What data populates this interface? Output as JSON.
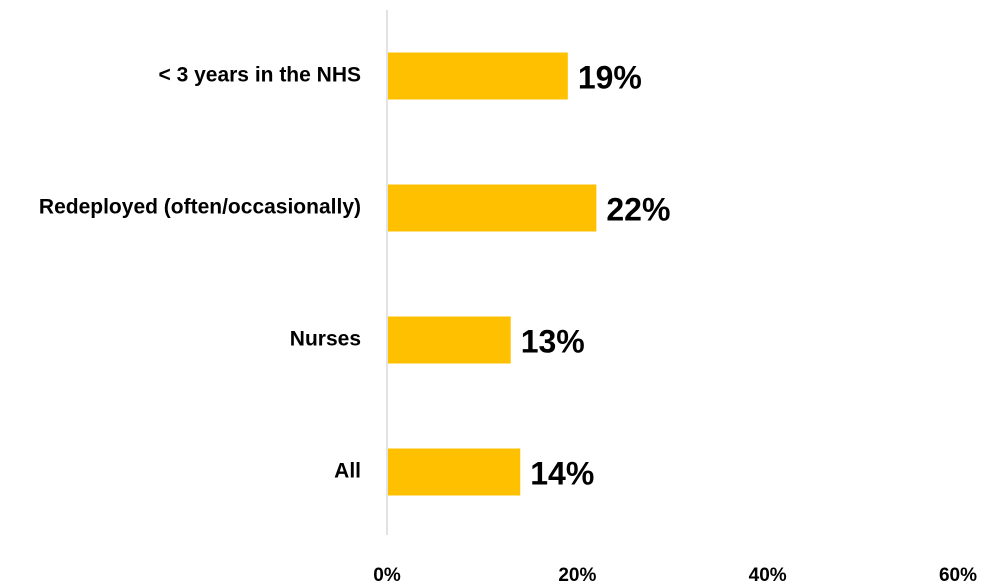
{
  "chart_data": {
    "type": "bar",
    "orientation": "horizontal",
    "categories": [
      "< 3 years in the NHS",
      "Redeployed (often/occasionally)",
      "Nurses",
      "All"
    ],
    "values": [
      19,
      22,
      13,
      14
    ],
    "data_labels": [
      "19%",
      "22%",
      "13%",
      "14%"
    ],
    "x_ticks": [
      "0%",
      "20%",
      "40%",
      "60%"
    ],
    "xlim": [
      0,
      60
    ],
    "grid": false,
    "legend": "none",
    "bar_color": "#FFC000",
    "axis_color": "#D9D9D9"
  }
}
